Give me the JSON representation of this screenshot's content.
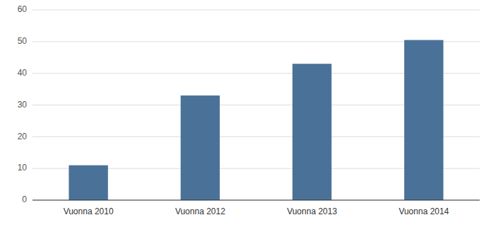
{
  "chart_data": {
    "type": "bar",
    "categories": [
      "Vuonna 2010",
      "Vuonna 2012",
      "Vuonna 2013",
      "Vuonna 2014"
    ],
    "values": [
      11,
      33,
      43,
      50.5
    ],
    "color": "#4a7298",
    "ylim": [
      0,
      60
    ],
    "yticks": [
      0,
      10,
      20,
      30,
      40,
      50,
      60
    ],
    "grid": true
  }
}
